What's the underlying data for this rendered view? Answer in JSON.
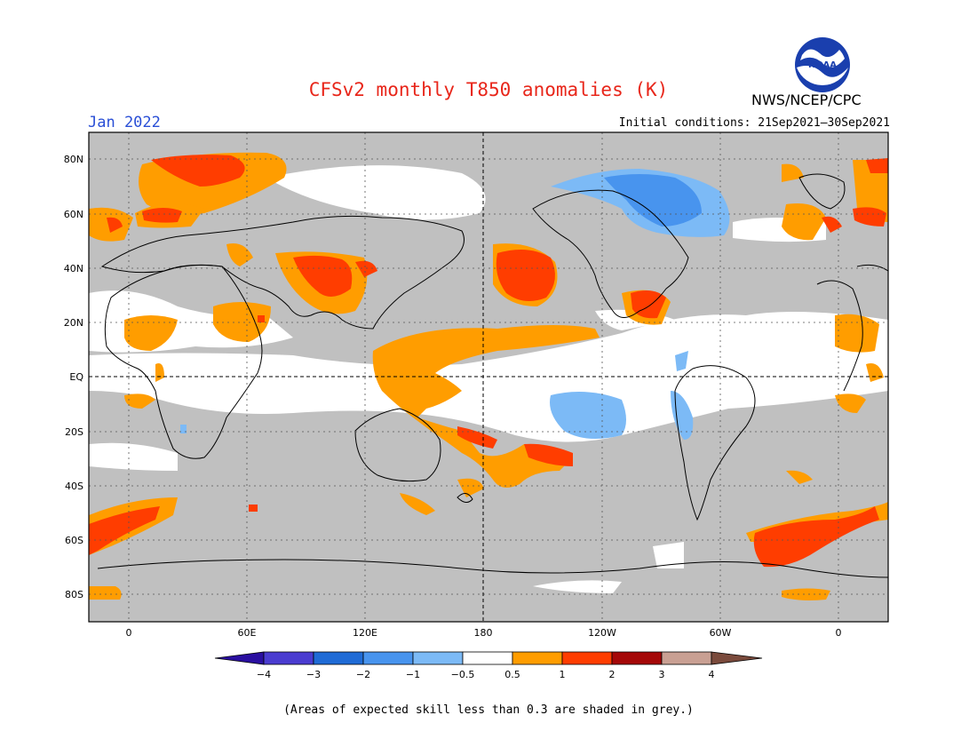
{
  "header": {
    "title": "CFSv2 monthly T850 anomalies (K)",
    "month": "Jan 2022",
    "initial_conditions": "Initial conditions: 21Sep2021–30Sep2021",
    "agency": "NWS/NCEP/CPC",
    "logo_text": "NOAA"
  },
  "map": {
    "lat_labels": [
      "80N",
      "60N",
      "40N",
      "20N",
      "EQ",
      "20S",
      "40S",
      "60S",
      "80S"
    ],
    "lon_labels": [
      "0",
      "60E",
      "120E",
      "180",
      "120W",
      "60W",
      "0"
    ],
    "grey_meaning": "low skill",
    "colors": {
      "grey": "#c0c0c0",
      "land_outline": "#000000"
    }
  },
  "legend": {
    "ticks": [
      "−4",
      "−3",
      "−2",
      "−1",
      "−0.5",
      "0.5",
      "1",
      "2",
      "3",
      "4"
    ],
    "colors": [
      "#2a0fa0",
      "#4a3cd0",
      "#1f6bd6",
      "#4894ee",
      "#7cbaf6",
      "#ffffff",
      "#ff9d00",
      "#ff3d00",
      "#a50808",
      "#c9a093",
      "#7a4a3c"
    ]
  },
  "footnote": "(Areas of expected skill less than 0.3 are shaded in grey.)"
}
